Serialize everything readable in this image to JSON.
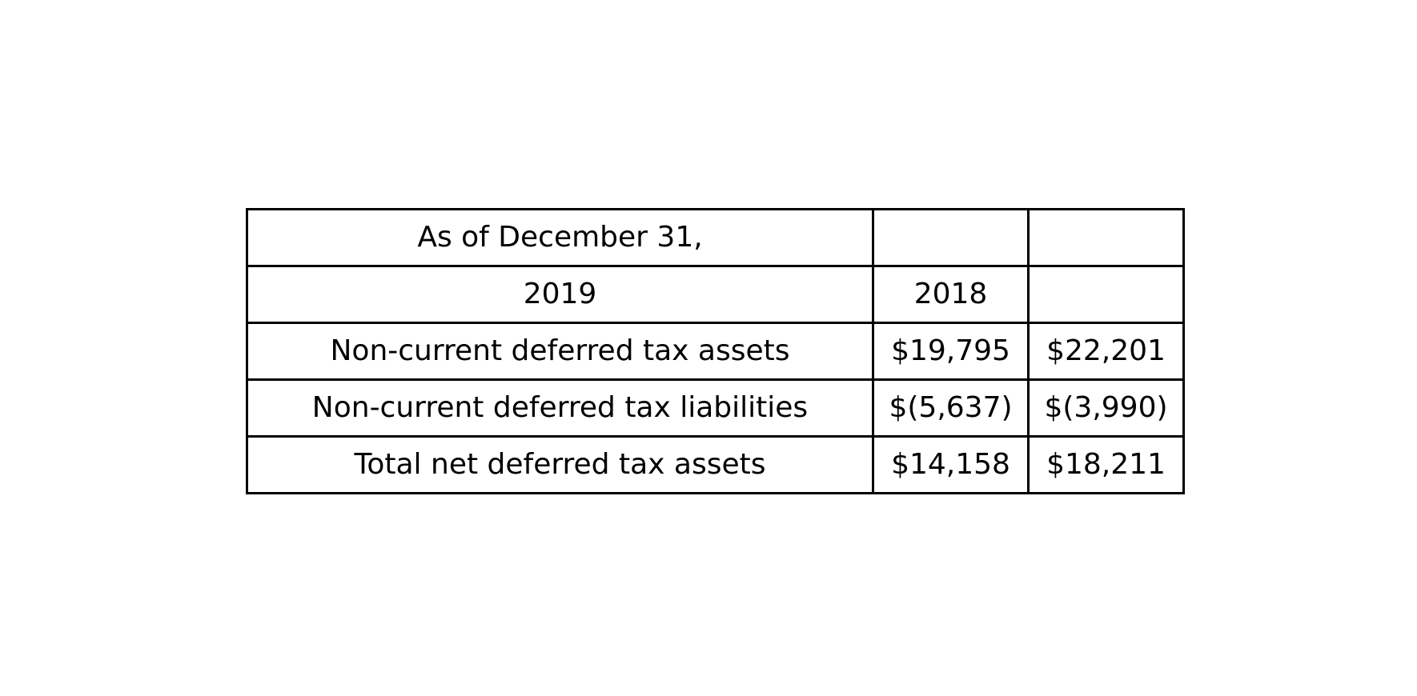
{
  "chart_data": {
    "type": "table",
    "rows": [
      [
        "As of December 31,",
        "",
        ""
      ],
      [
        "2019",
        "2018",
        ""
      ],
      [
        "Non-current deferred tax assets",
        "$19,795",
        "$22,201"
      ],
      [
        "Non-current deferred tax liabilities",
        "$(5,637)",
        "$(3,990)"
      ],
      [
        "Total net deferred tax assets",
        "$14,158",
        "$18,211"
      ]
    ]
  }
}
